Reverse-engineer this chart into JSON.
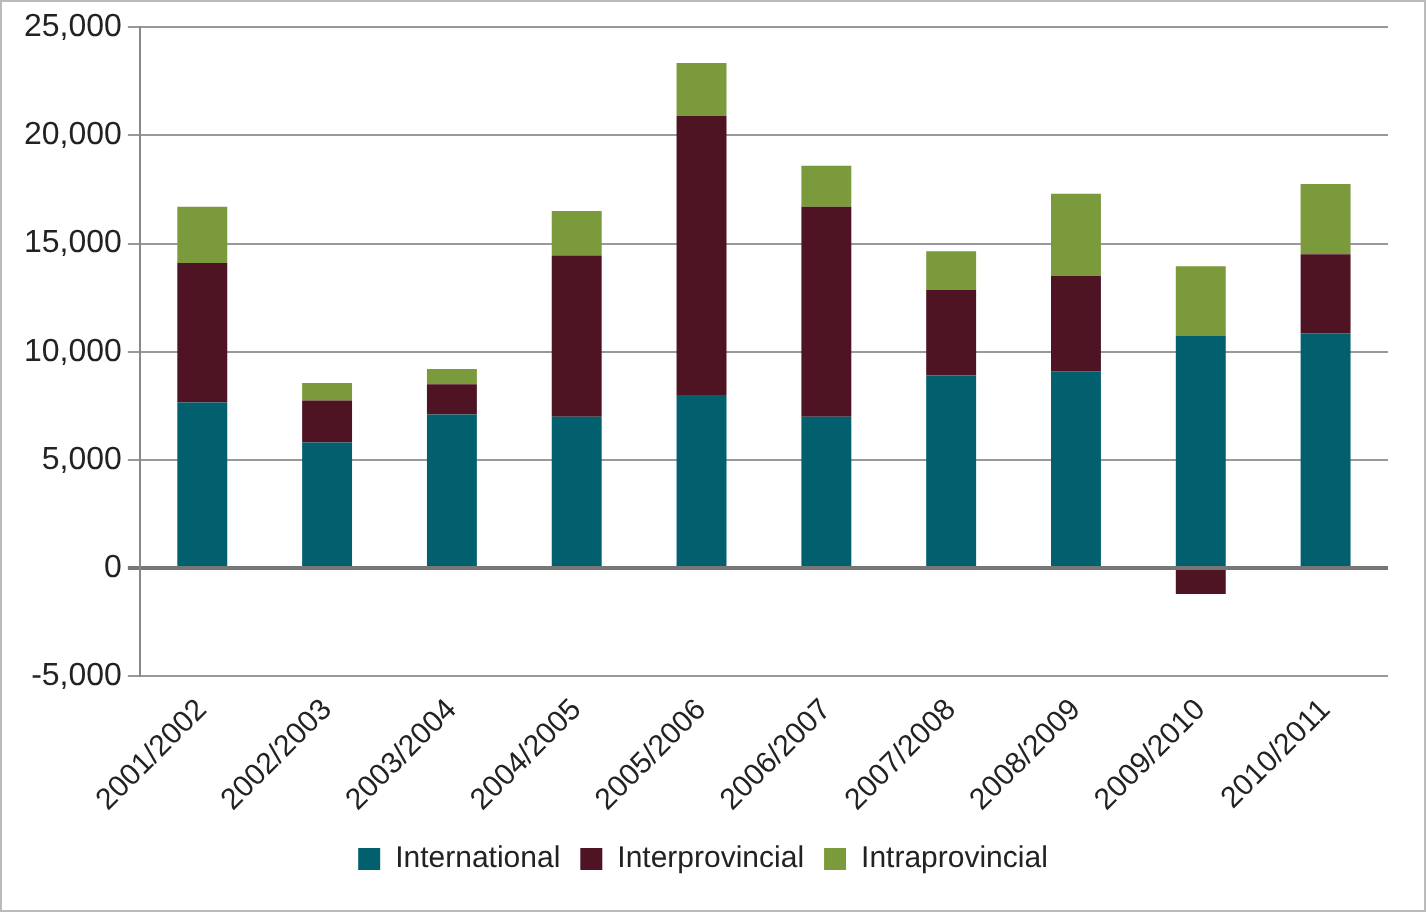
{
  "chart_data": {
    "type": "bar",
    "stacked": true,
    "categories": [
      "2001/2002",
      "2002/2003",
      "2003/2004",
      "2004/2005",
      "2005/2006",
      "2006/2007",
      "2007/2008",
      "2008/2009",
      "2009/2010",
      "2010/2011"
    ],
    "series": [
      {
        "name": "International",
        "color": "#02606e",
        "values": [
          7650,
          5800,
          7100,
          7000,
          8000,
          7000,
          8900,
          9100,
          10750,
          10850
        ]
      },
      {
        "name": "Interprovincial",
        "color": "#4e1423",
        "values": [
          6450,
          1950,
          1400,
          7450,
          12900,
          9700,
          3950,
          4400,
          -1200,
          3650
        ]
      },
      {
        "name": "Intraprovincial",
        "color": "#7a9a3c",
        "values": [
          2600,
          800,
          700,
          2050,
          2450,
          1900,
          1800,
          3800,
          3200,
          3250
        ]
      }
    ],
    "ylim": [
      -5000,
      25000
    ],
    "yticks": [
      {
        "value": -5000,
        "label": "-5,000"
      },
      0,
      {
        "value": 5000,
        "label": "5,000"
      },
      {
        "value": 10000,
        "label": "10,000"
      },
      {
        "value": 15000,
        "label": "15,000"
      },
      {
        "value": 20000,
        "label": "20,000"
      },
      {
        "value": 25000,
        "label": "25,000"
      }
    ],
    "grid": "y",
    "legend": "bottom"
  }
}
